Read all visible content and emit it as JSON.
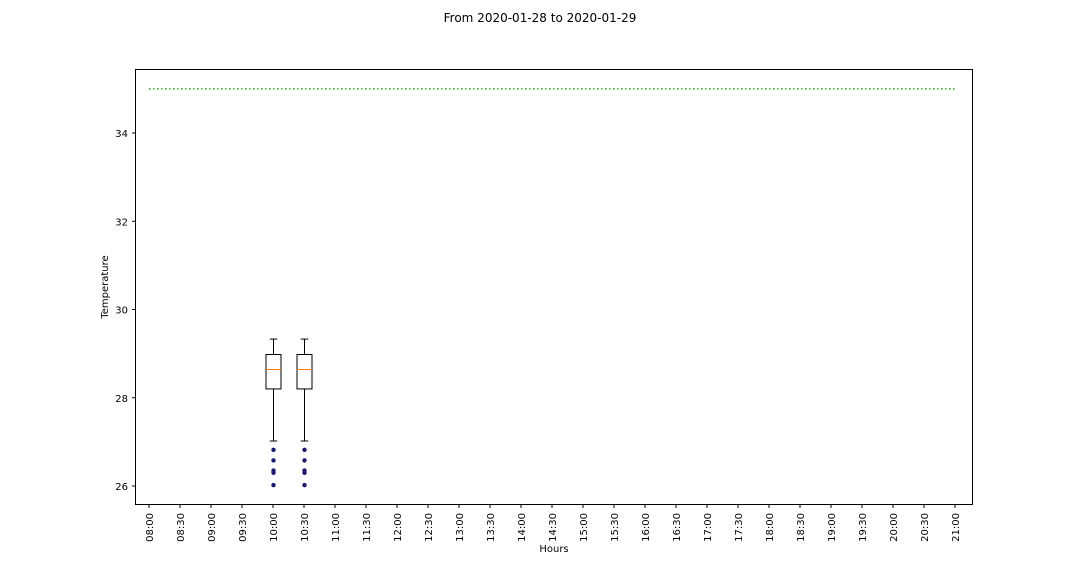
{
  "chart_data": {
    "type": "box",
    "title": "From 2020-01-28 to 2020-01-29",
    "xlabel": "Hours",
    "ylabel": "Temperature",
    "categories": [
      "08:00",
      "08:30",
      "09:00",
      "09:30",
      "10:00",
      "10:30",
      "11:00",
      "11:30",
      "12:00",
      "12:30",
      "13:00",
      "13:30",
      "14:00",
      "14:30",
      "15:00",
      "15:30",
      "16:00",
      "16:30",
      "17:00",
      "17:30",
      "18:00",
      "18:30",
      "19:00",
      "19:30",
      "20:00",
      "20:30",
      "21:00"
    ],
    "ylim": [
      25.6,
      35.5
    ],
    "yticks": [
      26,
      28,
      30,
      32,
      34
    ],
    "grid": false,
    "boxes": [
      {
        "category": "10:00",
        "whisker_low": 27.02,
        "q1": 28.2,
        "median": 28.64,
        "q3": 28.98,
        "whisker_high": 29.33,
        "outliers": [
          26.82,
          26.58,
          26.35,
          26.3,
          26.02
        ]
      },
      {
        "category": "10:30",
        "whisker_low": 27.02,
        "q1": 28.2,
        "median": 28.64,
        "q3": 28.98,
        "whisker_high": 29.33,
        "outliers": [
          26.82,
          26.58,
          26.35,
          26.3,
          26.02
        ]
      }
    ],
    "threshold": {
      "y": 35.0,
      "color": "#2ca02c",
      "style": "dotted"
    },
    "colors": {
      "box": "#000000",
      "median": "#ff7f0e",
      "outlier": "#1a1a6e",
      "threshold": "#2ca02c"
    }
  }
}
